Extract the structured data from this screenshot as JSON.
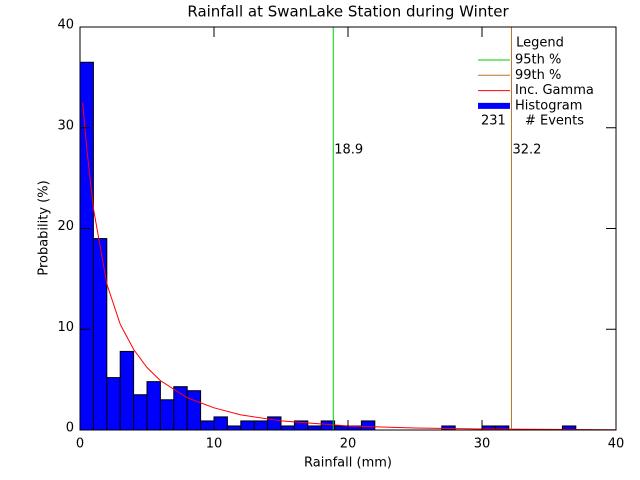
{
  "chart_data": {
    "type": "histogram",
    "title": "Rainfall at SwanLake Station during Winter",
    "xlabel": "Rainfall (mm)",
    "ylabel": "Probability (%)",
    "name": "Histogram",
    "color": "#0000ff",
    "bins": [
      0,
      1,
      2,
      3,
      4,
      5,
      6,
      7,
      8,
      9,
      10,
      11,
      12,
      13,
      14,
      15,
      16,
      17,
      18,
      19,
      20,
      21,
      22,
      23,
      24,
      25,
      26,
      27,
      28,
      29,
      30,
      31,
      32,
      33,
      34,
      35,
      36,
      37,
      38,
      39,
      40
    ],
    "values": [
      36.5,
      19,
      5.2,
      7.8,
      3.5,
      4.8,
      3.0,
      4.3,
      3.9,
      0.9,
      1.3,
      0.4,
      0.9,
      0.9,
      1.3,
      0.4,
      0.9,
      0.4,
      0.9,
      0.4,
      0.4,
      0.9,
      0,
      0,
      0,
      0,
      0,
      0.4,
      0,
      0,
      0.4,
      0.4,
      0,
      0,
      0,
      0,
      0.4,
      0,
      0,
      0
    ],
    "curve": {
      "name": "Inc. Gamma",
      "color": "#ff0000",
      "x": [
        0.2,
        0.5,
        1,
        2,
        3,
        4,
        5,
        6,
        8,
        10,
        12,
        15,
        20,
        25,
        30,
        40
      ],
      "values": [
        32.5,
        28,
        22,
        14.5,
        10.5,
        8,
        6.2,
        4.9,
        3.2,
        2.2,
        1.5,
        0.9,
        0.4,
        0.2,
        0.1,
        0.02
      ]
    },
    "percentiles": [
      {
        "name": "95th %",
        "value": 18.9,
        "color": "#00cc00"
      },
      {
        "name": "99th %",
        "value": 32.2,
        "color": "#b8732e"
      }
    ],
    "legend_title": "Legend",
    "events": 231,
    "events_label": "# Events",
    "xlim": [
      0,
      40
    ],
    "ylim": [
      0,
      40
    ],
    "xticks": [
      0,
      10,
      20,
      30,
      40
    ],
    "yticks": [
      0,
      10,
      20,
      30,
      40
    ]
  }
}
